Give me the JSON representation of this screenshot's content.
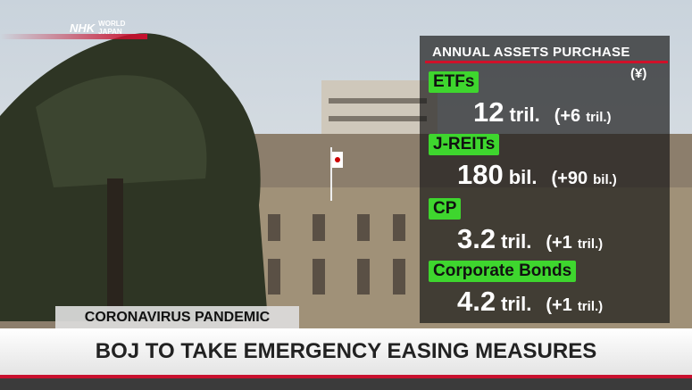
{
  "logo": {
    "brand": "NHK",
    "line1": "WORLD",
    "line2": "JAPAN"
  },
  "panel": {
    "title": "ANNUAL ASSETS PURCHASE",
    "currency": "(¥)",
    "items": [
      {
        "label": "ETFs",
        "amount": "12",
        "unit": "tril.",
        "change": "(+6",
        "change_unit": "tril.)"
      },
      {
        "label": "J-REITs",
        "amount": "180",
        "unit": "bil.",
        "change": "(+90",
        "change_unit": "bil.)"
      },
      {
        "label": "CP",
        "amount": "3.2",
        "unit": "tril.",
        "change": "(+1",
        "change_unit": "tril.)"
      },
      {
        "label": "Corporate Bonds",
        "amount": "4.2",
        "unit": "tril.",
        "change": "(+1",
        "change_unit": "tril.)"
      }
    ]
  },
  "lower_third": {
    "tag": "CORONAVIRUS PANDEMIC",
    "headline": "BOJ TO TAKE EMERGENCY EASING MEASURES"
  }
}
